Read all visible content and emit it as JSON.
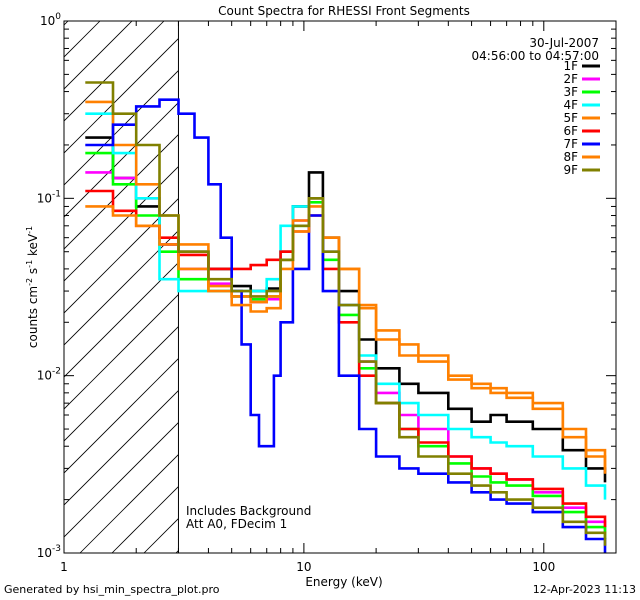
{
  "chart_data": {
    "type": "line",
    "title": "Count Spectra for RHESSI Front Segments",
    "xlabel": "Energy (keV)",
    "ylabel_parts": {
      "base": "counts cm",
      "exp1": "-2",
      "mid": " s",
      "exp2": "-1",
      "tail": " keV",
      "exp3": "-1"
    },
    "xscale": "log",
    "yscale": "log",
    "xlim": [
      1,
      200
    ],
    "ylim": [
      0.001,
      1
    ],
    "x_ticks": [
      {
        "value": 1,
        "label": "1"
      },
      {
        "value": 10,
        "label": "10"
      },
      {
        "value": 100,
        "label": "100"
      }
    ],
    "y_ticks": [
      {
        "value": 1,
        "base": "10",
        "exp": "0"
      },
      {
        "value": 0.1,
        "base": "10",
        "exp": "-1"
      },
      {
        "value": 0.01,
        "base": "10",
        "exp": "-2"
      },
      {
        "value": 0.001,
        "base": "10",
        "exp": "-3"
      }
    ],
    "hatched_region_x": [
      1,
      3
    ],
    "date": "30-Jul-2007",
    "time_range": "04:56:00 to 04:57:00",
    "legend_position": "top-right",
    "annotations": [
      "Includes Background",
      "Att A0, FDecim 1"
    ],
    "series": [
      {
        "name": "1F",
        "color": "#000000",
        "points": [
          [
            1.3,
            0.22
          ],
          [
            1.6,
            0.13
          ],
          [
            2.0,
            0.09
          ],
          [
            2.5,
            0.055
          ],
          [
            3.0,
            0.05
          ],
          [
            4.0,
            0.04
          ],
          [
            5.0,
            0.032
          ],
          [
            6.0,
            0.03
          ],
          [
            7.0,
            0.031
          ],
          [
            8.0,
            0.05
          ],
          [
            9.0,
            0.09
          ],
          [
            10.5,
            0.14
          ],
          [
            12,
            0.06
          ],
          [
            14,
            0.03
          ],
          [
            17,
            0.016
          ],
          [
            20,
            0.011
          ],
          [
            25,
            0.009
          ],
          [
            30,
            0.008
          ],
          [
            40,
            0.0065
          ],
          [
            50,
            0.0055
          ],
          [
            60,
            0.006
          ],
          [
            70,
            0.0055
          ],
          [
            90,
            0.005
          ],
          [
            120,
            0.0038
          ],
          [
            150,
            0.003
          ],
          [
            180,
            0.0025
          ]
        ]
      },
      {
        "name": "2F",
        "color": "#ff00ff",
        "points": [
          [
            1.3,
            0.14
          ],
          [
            1.6,
            0.13
          ],
          [
            2.0,
            0.1
          ],
          [
            2.5,
            0.055
          ],
          [
            3.0,
            0.04
          ],
          [
            4.0,
            0.033
          ],
          [
            5.0,
            0.028
          ],
          [
            6.0,
            0.026
          ],
          [
            7.0,
            0.027
          ],
          [
            8.0,
            0.045
          ],
          [
            9.0,
            0.075
          ],
          [
            10.5,
            0.1
          ],
          [
            12,
            0.05
          ],
          [
            14,
            0.025
          ],
          [
            17,
            0.012
          ],
          [
            20,
            0.008
          ],
          [
            25,
            0.006
          ],
          [
            30,
            0.005
          ],
          [
            40,
            0.0035
          ],
          [
            50,
            0.003
          ],
          [
            60,
            0.0028
          ],
          [
            70,
            0.0026
          ],
          [
            90,
            0.0022
          ],
          [
            120,
            0.0018
          ],
          [
            150,
            0.0015
          ],
          [
            180,
            0.0013
          ]
        ]
      },
      {
        "name": "3F",
        "color": "#00ff00",
        "points": [
          [
            1.3,
            0.18
          ],
          [
            1.6,
            0.12
          ],
          [
            2.0,
            0.08
          ],
          [
            2.5,
            0.05
          ],
          [
            3.0,
            0.035
          ],
          [
            4.0,
            0.03
          ],
          [
            5.0,
            0.028
          ],
          [
            6.0,
            0.027
          ],
          [
            7.0,
            0.028
          ],
          [
            8.0,
            0.045
          ],
          [
            9.0,
            0.07
          ],
          [
            10.5,
            0.095
          ],
          [
            12,
            0.045
          ],
          [
            14,
            0.022
          ],
          [
            17,
            0.011
          ],
          [
            20,
            0.007
          ],
          [
            25,
            0.005
          ],
          [
            30,
            0.004
          ],
          [
            40,
            0.0032
          ],
          [
            50,
            0.0027
          ],
          [
            60,
            0.0025
          ],
          [
            70,
            0.0024
          ],
          [
            90,
            0.0021
          ],
          [
            120,
            0.0017
          ],
          [
            150,
            0.0014
          ],
          [
            180,
            0.0012
          ]
        ]
      },
      {
        "name": "4F",
        "color": "#00ffff",
        "points": [
          [
            1.3,
            0.3
          ],
          [
            1.6,
            0.18
          ],
          [
            2.0,
            0.1
          ],
          [
            2.5,
            0.035
          ],
          [
            3.0,
            0.03
          ],
          [
            4.0,
            0.03
          ],
          [
            5.0,
            0.03
          ],
          [
            6.0,
            0.03
          ],
          [
            7.0,
            0.035
          ],
          [
            8.0,
            0.07
          ],
          [
            9.0,
            0.09
          ],
          [
            10.5,
            0.1
          ],
          [
            12,
            0.05
          ],
          [
            14,
            0.025
          ],
          [
            17,
            0.013
          ],
          [
            20,
            0.009
          ],
          [
            25,
            0.007
          ],
          [
            30,
            0.006
          ],
          [
            40,
            0.005
          ],
          [
            50,
            0.0045
          ],
          [
            60,
            0.0042
          ],
          [
            70,
            0.004
          ],
          [
            90,
            0.0035
          ],
          [
            120,
            0.003
          ],
          [
            150,
            0.0024
          ],
          [
            180,
            0.002
          ]
        ]
      },
      {
        "name": "5F",
        "color": "#ff8000",
        "points": [
          [
            1.3,
            0.35
          ],
          [
            1.6,
            0.2
          ],
          [
            2.0,
            0.12
          ],
          [
            2.5,
            0.08
          ],
          [
            3.0,
            0.055
          ],
          [
            4.0,
            0.032
          ],
          [
            5.0,
            0.028
          ],
          [
            6.0,
            0.026
          ],
          [
            7.0,
            0.028
          ],
          [
            8.0,
            0.045
          ],
          [
            9.0,
            0.075
          ],
          [
            10.5,
            0.1
          ],
          [
            12,
            0.06
          ],
          [
            14,
            0.04
          ],
          [
            17,
            0.024
          ],
          [
            20,
            0.016
          ],
          [
            25,
            0.013
          ],
          [
            30,
            0.012
          ],
          [
            40,
            0.0095
          ],
          [
            50,
            0.0085
          ],
          [
            60,
            0.008
          ],
          [
            70,
            0.0075
          ],
          [
            90,
            0.0065
          ],
          [
            120,
            0.0045
          ],
          [
            150,
            0.0035
          ],
          [
            180,
            0.0028
          ]
        ]
      },
      {
        "name": "6F",
        "color": "#ff0000",
        "points": [
          [
            1.3,
            0.11
          ],
          [
            1.6,
            0.085
          ],
          [
            2.0,
            0.07
          ],
          [
            2.5,
            0.06
          ],
          [
            3.0,
            0.048
          ],
          [
            4.0,
            0.04
          ],
          [
            5.0,
            0.04
          ],
          [
            6.0,
            0.042
          ],
          [
            7.0,
            0.045
          ],
          [
            8.0,
            0.05
          ],
          [
            9.0,
            0.065
          ],
          [
            10.5,
            0.08
          ],
          [
            12,
            0.04
          ],
          [
            14,
            0.02
          ],
          [
            17,
            0.01
          ],
          [
            20,
            0.007
          ],
          [
            25,
            0.005
          ],
          [
            30,
            0.0042
          ],
          [
            40,
            0.0035
          ],
          [
            50,
            0.003
          ],
          [
            60,
            0.0028
          ],
          [
            70,
            0.0026
          ],
          [
            90,
            0.0023
          ],
          [
            120,
            0.0019
          ],
          [
            150,
            0.0016
          ],
          [
            180,
            0.0014
          ]
        ]
      },
      {
        "name": "7F",
        "color": "#0000ff",
        "points": [
          [
            1.3,
            0.2
          ],
          [
            1.6,
            0.26
          ],
          [
            2.0,
            0.33
          ],
          [
            2.5,
            0.36
          ],
          [
            3.0,
            0.3
          ],
          [
            3.5,
            0.22
          ],
          [
            4.0,
            0.12
          ],
          [
            4.5,
            0.06
          ],
          [
            5.0,
            0.03
          ],
          [
            5.5,
            0.015
          ],
          [
            6.0,
            0.006
          ],
          [
            6.5,
            0.004
          ],
          [
            7.0,
            0.004
          ],
          [
            7.5,
            0.01
          ],
          [
            8.0,
            0.02
          ],
          [
            9.0,
            0.04
          ],
          [
            10.5,
            0.08
          ],
          [
            12,
            0.03
          ],
          [
            14,
            0.01
          ],
          [
            17,
            0.005
          ],
          [
            20,
            0.0035
          ],
          [
            25,
            0.003
          ],
          [
            30,
            0.0028
          ],
          [
            40,
            0.0025
          ],
          [
            50,
            0.0022
          ],
          [
            60,
            0.002
          ],
          [
            70,
            0.0019
          ],
          [
            90,
            0.0017
          ],
          [
            120,
            0.0014
          ],
          [
            150,
            0.0012
          ],
          [
            180,
            0.001
          ]
        ]
      },
      {
        "name": "8F",
        "color": "#ff8000",
        "points": [
          [
            1.3,
            0.09
          ],
          [
            1.6,
            0.08
          ],
          [
            2.0,
            0.07
          ],
          [
            2.5,
            0.055
          ],
          [
            3.0,
            0.04
          ],
          [
            4.0,
            0.03
          ],
          [
            5.0,
            0.025
          ],
          [
            6.0,
            0.023
          ],
          [
            7.0,
            0.024
          ],
          [
            8.0,
            0.04
          ],
          [
            9.0,
            0.065
          ],
          [
            10.5,
            0.09
          ],
          [
            12,
            0.06
          ],
          [
            14,
            0.04
          ],
          [
            17,
            0.025
          ],
          [
            20,
            0.018
          ],
          [
            25,
            0.015
          ],
          [
            30,
            0.013
          ],
          [
            40,
            0.01
          ],
          [
            50,
            0.009
          ],
          [
            60,
            0.0085
          ],
          [
            70,
            0.008
          ],
          [
            90,
            0.007
          ],
          [
            120,
            0.005
          ],
          [
            150,
            0.0038
          ],
          [
            180,
            0.003
          ]
        ]
      },
      {
        "name": "9F",
        "color": "#808000",
        "points": [
          [
            1.3,
            0.45
          ],
          [
            1.6,
            0.3
          ],
          [
            2.0,
            0.2
          ],
          [
            2.5,
            0.08
          ],
          [
            3.0,
            0.05
          ],
          [
            4.0,
            0.035
          ],
          [
            5.0,
            0.03
          ],
          [
            6.0,
            0.028
          ],
          [
            7.0,
            0.03
          ],
          [
            8.0,
            0.045
          ],
          [
            9.0,
            0.07
          ],
          [
            10.5,
            0.1
          ],
          [
            12,
            0.05
          ],
          [
            14,
            0.025
          ],
          [
            17,
            0.012
          ],
          [
            20,
            0.007
          ],
          [
            25,
            0.0045
          ],
          [
            30,
            0.0035
          ],
          [
            40,
            0.0028
          ],
          [
            50,
            0.0024
          ],
          [
            60,
            0.0022
          ],
          [
            70,
            0.002
          ],
          [
            90,
            0.0018
          ],
          [
            120,
            0.0015
          ],
          [
            150,
            0.0013
          ],
          [
            180,
            0.0011
          ]
        ]
      }
    ]
  },
  "footer": {
    "generated_by": "Generated by hsi_min_spectra_plot.pro",
    "timestamp": "12-Apr-2023 11:13"
  }
}
